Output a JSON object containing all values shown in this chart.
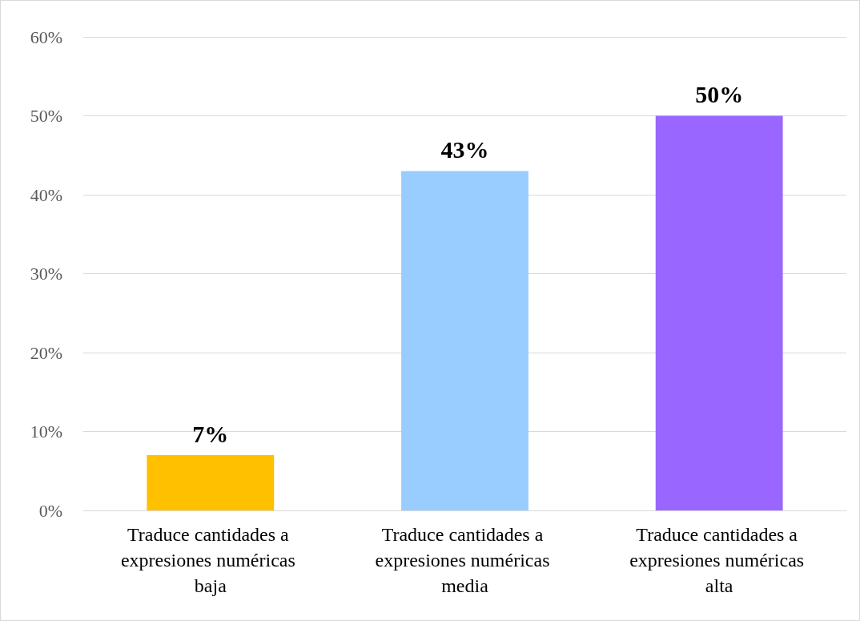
{
  "chart_data": {
    "type": "bar",
    "categories": [
      "Traduce cantidades a expresiones numéricas baja",
      "Traduce cantidades a expresiones numéricas media",
      "Traduce cantidades a expresiones numéricas alta"
    ],
    "values": [
      7,
      43,
      50
    ],
    "colors": [
      "#ffc000",
      "#99ccff",
      "#9966ff"
    ],
    "value_labels": [
      "7%",
      "43%",
      "50%"
    ],
    "ylim": [
      0,
      60
    ],
    "yticks": [
      {
        "value": 0,
        "label": "0%"
      },
      {
        "value": 10,
        "label": "10%"
      },
      {
        "value": 20,
        "label": "20%"
      },
      {
        "value": 30,
        "label": "30%"
      },
      {
        "value": 40,
        "label": "40%"
      },
      {
        "value": 50,
        "label": "50%"
      },
      {
        "value": 60,
        "label": "60%"
      }
    ],
    "grid": true
  }
}
